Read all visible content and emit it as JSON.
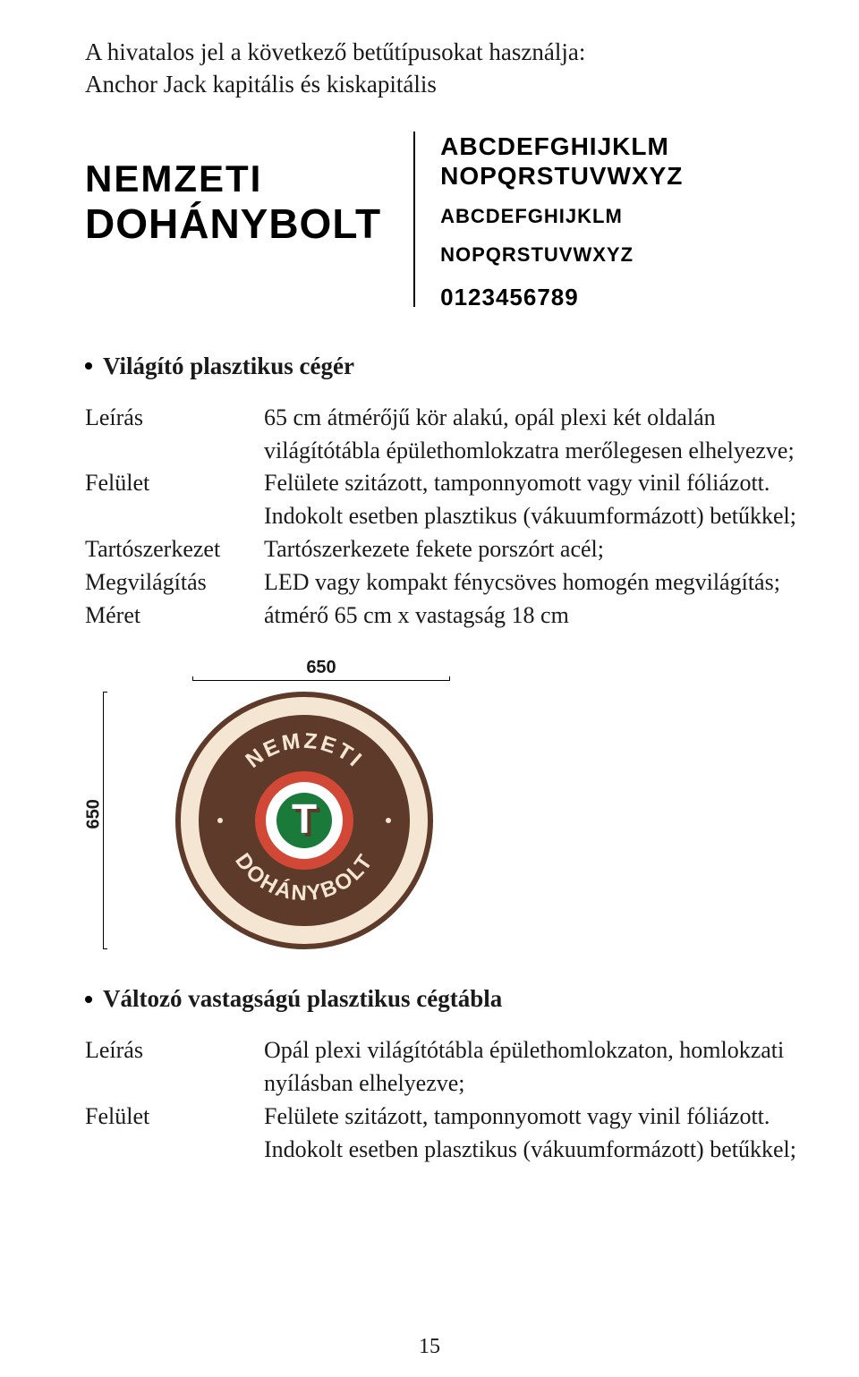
{
  "intro": {
    "line1": "A hivatalos jel a következő betűtípusokat használja:",
    "line2": "Anchor Jack kapitális és kiskapitális"
  },
  "font_demo": {
    "word1": "NEMZETI",
    "word2": "DOHÁNYBOLT",
    "alpha_big_1": "ABCDEFGHIJKLM",
    "alpha_big_2": "NOPQRSTUVWXYZ",
    "alpha_small_1": "ABCDEFGHIJKLM",
    "alpha_small_2": "NOPQRSTUVWXYZ",
    "numerals": "0123456789"
  },
  "section1": {
    "title": "Világító plasztikus cégér",
    "rows": [
      {
        "label": "Leírás",
        "value": "65 cm átmérőjű kör alakú, opál plexi két oldalán világítótábla épülethomlokzatra merőlegesen elhelyezve;"
      },
      {
        "label": "Felület",
        "value": "Felülete szitázott, tamponnyomott vagy vinil fóliázott. Indokolt esetben plasztikus (vákuumformázott) betűkkel;"
      },
      {
        "label": "Tartószerkezet",
        "value": "Tartószerkezete fekete porszórt acél;"
      },
      {
        "label": "Megvilágítás",
        "value": "LED vagy kompakt fénycsöves homogén megvilágítás;"
      },
      {
        "label": "Méret",
        "value": "átmérő 65 cm x vastagság 18 cm"
      }
    ]
  },
  "diagram": {
    "dim_top": "650",
    "dim_left": "650",
    "sign": {
      "outer_border_color": "#5d3a2a",
      "outer_ring_fill": "#f5e6d3",
      "inner_ring_fill": "#5d3a2a",
      "red_ring": "#d14836",
      "green_circle": "#1a7a3a",
      "white": "#ffffff",
      "letter_T": "T",
      "letter_T_shadow": "#5d3a2a",
      "arc_top_text": "NEMZETI",
      "arc_bottom_text": "DOHÁNYBOLT",
      "arc_text_color": "#f5e6d3",
      "dot_color": "#f5e6d3"
    }
  },
  "section2": {
    "title": "Változó vastagságú plasztikus cégtábla",
    "rows": [
      {
        "label": "Leírás",
        "value": "Opál plexi világítótábla épülethomlokzaton, homlokzati nyílásban elhelyezve;"
      },
      {
        "label": "Felület",
        "value": "Felülete szitázott, tamponnyomott vagy vinil fóliázott. Indokolt esetben plasztikus (vákuumformázott) betűkkel;"
      }
    ]
  },
  "page_number": "15"
}
